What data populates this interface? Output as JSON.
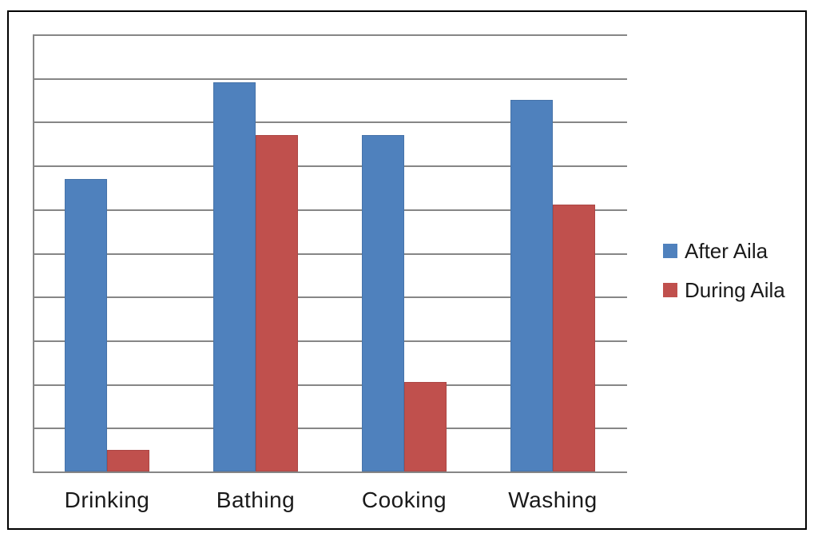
{
  "figure": {
    "background_color": "#FFFFFF",
    "frame_border_color": "#000000",
    "gridline_color": "#868686",
    "text_color": "#1A1A1A"
  },
  "chart_data": {
    "type": "bar",
    "categories": [
      "Drinking",
      "Bathing",
      "Cooking",
      "Washing"
    ],
    "series": [
      {
        "name": "After Aila",
        "color": "#4F81BD",
        "values": [
          6.7,
          8.9,
          7.7,
          8.5
        ]
      },
      {
        "name": "During Aila",
        "color": "#C0504D",
        "values": [
          0.5,
          7.7,
          2.05,
          6.1
        ]
      }
    ],
    "xlabel": "",
    "ylabel": "",
    "ylim": [
      0,
      10
    ],
    "gridline_interval": 1,
    "grid": true,
    "y_tick_labels_visible": false,
    "legend_position": "right",
    "note": "y-axis gridlines are unlabeled; values estimated in gridline units"
  }
}
